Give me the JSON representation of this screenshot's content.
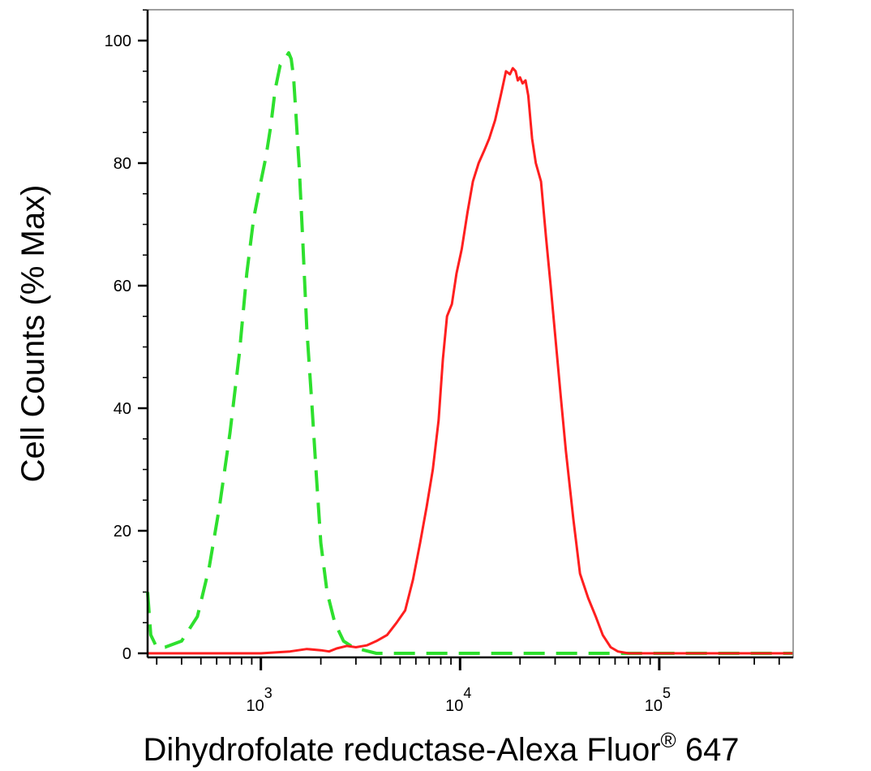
{
  "chart_data": {
    "type": "line",
    "title": "",
    "xlabel": "Dihydrofolate reductase-Alexa Fluor",
    "xlabel_superscript": "®",
    "xlabel_suffix": " 647",
    "ylabel": "Cell Counts (% Max)",
    "x_scale": "log",
    "xlim": [
      270,
      470000
    ],
    "ylim": [
      0,
      105
    ],
    "y_ticks": [
      0,
      20,
      40,
      60,
      80,
      100
    ],
    "y_tick_labels": [
      "0",
      "20",
      "40",
      "60",
      "80",
      "100"
    ],
    "x_major_ticks": [
      {
        "value": 1000,
        "base": "10",
        "exp": "3"
      },
      {
        "value": 10000,
        "base": "10",
        "exp": "4"
      },
      {
        "value": 100000,
        "base": "10",
        "exp": "5"
      }
    ],
    "grid": false,
    "legend": "none",
    "series": [
      {
        "color": "#2ee02e",
        "style": "dashed",
        "x": [
          270,
          280,
          300,
          330,
          400,
          480,
          550,
          620,
          700,
          780,
          850,
          920,
          1000,
          1060,
          1120,
          1180,
          1250,
          1320,
          1380,
          1420,
          1460,
          1500,
          1560,
          1620,
          1700,
          1800,
          1900,
          2000,
          2150,
          2350,
          2600,
          2900,
          3300,
          3800,
          5000,
          10000,
          50000,
          100000,
          470000
        ],
        "y": [
          10,
          3,
          1,
          1,
          2,
          6,
          14,
          24,
          36,
          49,
          62,
          71,
          77,
          81,
          86,
          92,
          96,
          97,
          98,
          97,
          94,
          88,
          79,
          68,
          53,
          41,
          29,
          18,
          10,
          5,
          2,
          1,
          0.5,
          0,
          0,
          0,
          0,
          0,
          0
        ]
      },
      {
        "color": "#ff1f1f",
        "style": "solid",
        "x": [
          270,
          1000,
          1400,
          1700,
          2000,
          2200,
          2400,
          2700,
          3000,
          3400,
          3800,
          4300,
          4800,
          5300,
          5800,
          6300,
          6800,
          7300,
          7800,
          8200,
          8600,
          9100,
          9600,
          10200,
          10900,
          11600,
          12400,
          13200,
          14000,
          15000,
          16000,
          17000,
          17800,
          18400,
          19000,
          19500,
          20000,
          20600,
          21300,
          22000,
          23000,
          24000,
          25500,
          27000,
          28500,
          30000,
          32000,
          34000,
          37000,
          40000,
          44000,
          48000,
          52000,
          57000,
          62000,
          70000,
          80000,
          100000,
          470000
        ],
        "y": [
          0,
          0,
          0.3,
          0.7,
          0.5,
          0.3,
          0.8,
          1.2,
          1,
          1.3,
          2,
          3,
          5,
          7,
          12,
          18,
          24,
          30,
          38,
          48,
          55,
          57,
          62,
          66,
          72,
          77,
          80,
          82,
          84,
          87,
          91,
          95,
          94.5,
          95.5,
          95,
          93.5,
          94,
          93,
          93.5,
          91,
          84,
          80,
          77,
          68,
          60,
          52,
          42,
          33,
          22,
          13,
          9,
          6,
          3,
          1,
          0.3,
          0,
          0,
          0,
          0
        ]
      }
    ]
  }
}
